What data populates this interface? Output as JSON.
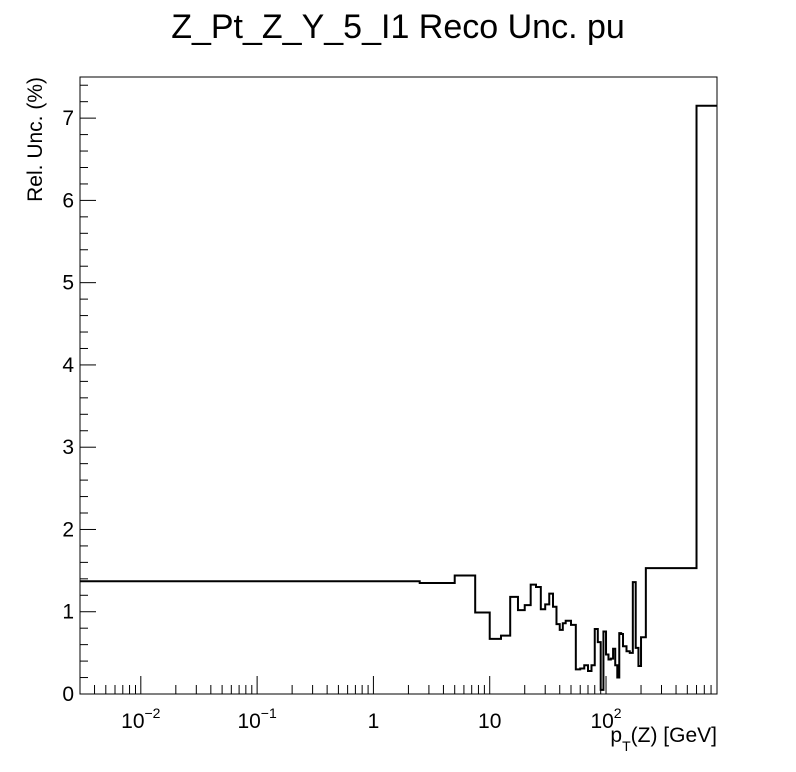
{
  "chart_data": {
    "type": "line",
    "style": "step-histogram",
    "title": "Z_Pt_Z_Y_5_I1 Reco Unc. pu",
    "xlabel": {
      "prefix": "p",
      "subscript": "T",
      "suffix": "(Z) [GeV]"
    },
    "ylabel": "Rel. Unc. (%)",
    "x_scale": "log",
    "xlim": [
      0.003,
      900
    ],
    "ylim": [
      0,
      7.5
    ],
    "grid": false,
    "x_ticks": [
      {
        "value": 0.01,
        "base": "10",
        "exp": "−2"
      },
      {
        "value": 0.1,
        "base": "10",
        "exp": "−1"
      },
      {
        "value": 1,
        "base": "1",
        "exp": ""
      },
      {
        "value": 10,
        "base": "10",
        "exp": ""
      },
      {
        "value": 100,
        "base": "10",
        "exp": "2"
      }
    ],
    "y_ticks": [
      "0",
      "1",
      "2",
      "3",
      "4",
      "5",
      "6",
      "7"
    ],
    "series": [
      {
        "edges": [
          0.003,
          2.5,
          5,
          7.5,
          10,
          12.5,
          15,
          17.5,
          20,
          22.5,
          25,
          27.5,
          30,
          32.5,
          35,
          37.5,
          40,
          42.5,
          45,
          50,
          55,
          60,
          65,
          70,
          75,
          80,
          85,
          90,
          95,
          100,
          105,
          110,
          115,
          120,
          125,
          130,
          135,
          140,
          150,
          160,
          170,
          180,
          190,
          200,
          220,
          240,
          260,
          280,
          300,
          340,
          400,
          600,
          800,
          900
        ],
        "values": [
          1.37,
          1.35,
          1.44,
          0.99,
          0.67,
          0.71,
          1.18,
          1.02,
          1.08,
          1.33,
          1.3,
          1.03,
          1.09,
          1.22,
          1.06,
          0.85,
          0.78,
          0.86,
          0.89,
          0.84,
          0.3,
          0.31,
          0.35,
          0.28,
          0.35,
          0.79,
          0.63,
          0.05,
          0.76,
          0.48,
          0.42,
          0.43,
          0.55,
          0.35,
          0.2,
          0.74,
          0.73,
          0.58,
          0.52,
          0.5,
          1.36,
          0.56,
          0.34,
          0.69,
          1.53,
          1.53,
          1.53,
          1.53,
          1.53,
          1.53,
          1.53,
          7.15,
          7.15
        ]
      }
    ]
  }
}
